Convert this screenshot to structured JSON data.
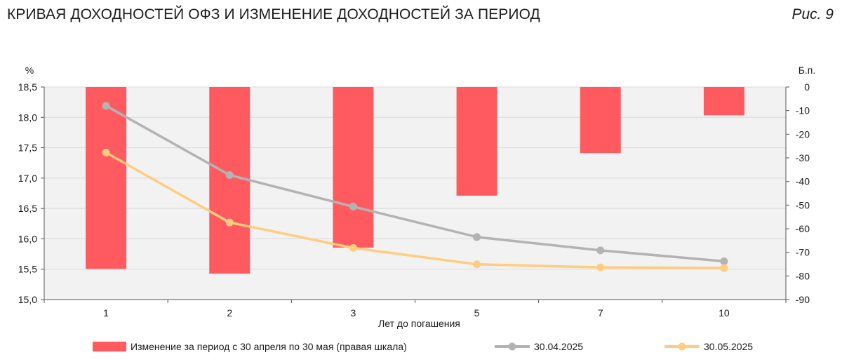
{
  "header": {
    "title": "КРИВАЯ ДОХОДНОСТЕЙ ОФЗ И ИЗМЕНЕНИЕ ДОХОДНОСТЕЙ ЗА ПЕРИОД",
    "figure_label": "Рис. 9"
  },
  "colors": {
    "bars": "#ff5a5f",
    "series_april": "#b3b3b3",
    "series_may": "#ffcc80",
    "grid": "#d9d9d9",
    "plot_bg": "#f2f2f2"
  },
  "chart_data": {
    "type": "bar+line",
    "categories": [
      "1",
      "2",
      "3",
      "5",
      "7",
      "10"
    ],
    "xlabel": "Лет до погашения",
    "ylabel_left": "%",
    "ylabel_right": "Б.п.",
    "ylim_left": [
      15.0,
      18.5
    ],
    "ylim_right": [
      -90,
      0
    ],
    "yticks_left": [
      "18,5",
      "18,0",
      "17,5",
      "17,0",
      "16,5",
      "16,0",
      "15,5",
      "15,0"
    ],
    "yticks_right": [
      "0",
      "-10",
      "-20",
      "-30",
      "-40",
      "-50",
      "-60",
      "-70",
      "-80",
      "-90"
    ],
    "grid": true,
    "legend_position": "bottom",
    "bars": {
      "name": "Изменение за период с 30 апреля по 30 мая (правая шкала)",
      "axis": "right",
      "values": [
        -77,
        -79,
        -68,
        -46,
        -28,
        -12
      ]
    },
    "series": [
      {
        "name": "30.04.2025",
        "axis": "left",
        "values": [
          18.19,
          17.05,
          16.53,
          16.03,
          15.81,
          15.63
        ]
      },
      {
        "name": "30.05.2025",
        "axis": "left",
        "values": [
          17.42,
          16.27,
          15.85,
          15.58,
          15.53,
          15.52
        ]
      }
    ]
  }
}
